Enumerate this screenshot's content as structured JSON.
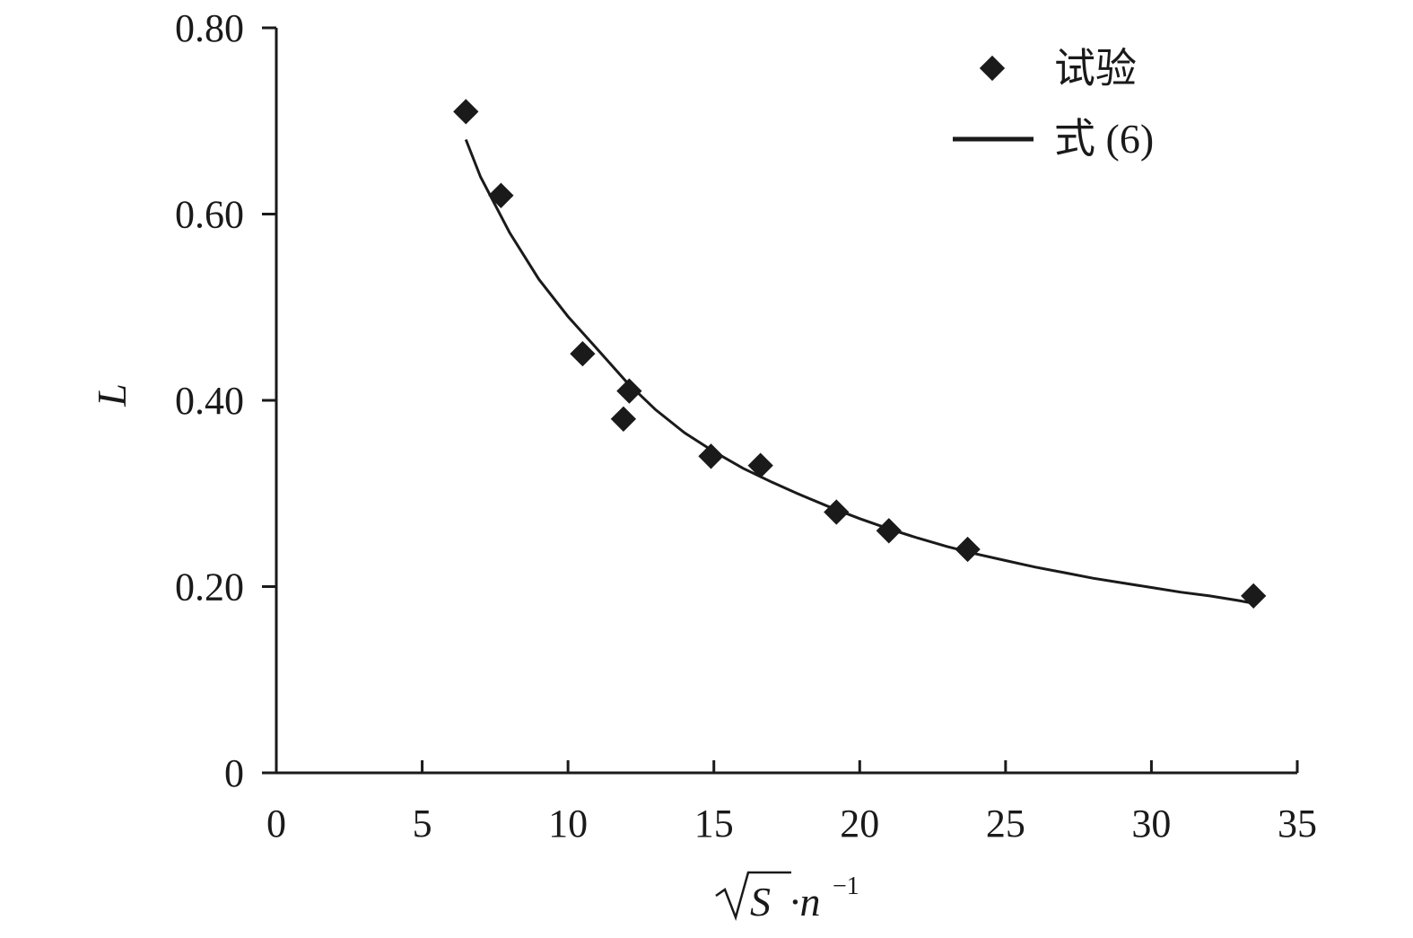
{
  "chart_data": {
    "type": "scatter",
    "xlabel": {
      "sqrt": "S",
      "rest": "·n",
      "sup": "−1"
    },
    "ylabel": "L",
    "xlim": [
      0,
      35
    ],
    "ylim": [
      0,
      0.8
    ],
    "x_ticks": [
      0,
      5,
      10,
      15,
      20,
      25,
      30,
      35
    ],
    "y_ticks": [
      0,
      0.2,
      0.4,
      0.6,
      0.8
    ],
    "x_tick_labels": [
      "0",
      "5",
      "10",
      "15",
      "20",
      "25",
      "30",
      "35"
    ],
    "y_tick_labels": [
      "0",
      "0.20",
      "0.40",
      "0.60",
      "0.80"
    ],
    "grid": false,
    "legend_position": "top-right",
    "series": [
      {
        "name": "试验",
        "kind": "scatter",
        "marker": "diamond",
        "color": "#1a1a1a",
        "x": [
          6.5,
          7.7,
          10.5,
          11.9,
          12.1,
          14.9,
          16.6,
          19.2,
          21.0,
          23.7,
          33.5
        ],
        "y": [
          0.71,
          0.62,
          0.45,
          0.38,
          0.41,
          0.34,
          0.33,
          0.28,
          0.26,
          0.24,
          0.19
        ]
      },
      {
        "name": "式 (6)",
        "kind": "line",
        "color": "#1a1a1a",
        "x": [
          6.5,
          7,
          8,
          9,
          10,
          11,
          12,
          13,
          14,
          15,
          16,
          17,
          18,
          19,
          20,
          21,
          22,
          23,
          24,
          25,
          26,
          27,
          28,
          29,
          30,
          31,
          32,
          33,
          33.5
        ],
        "y": [
          0.68,
          0.64,
          0.58,
          0.53,
          0.49,
          0.455,
          0.42,
          0.39,
          0.365,
          0.345,
          0.327,
          0.312,
          0.298,
          0.285,
          0.273,
          0.262,
          0.252,
          0.243,
          0.235,
          0.228,
          0.221,
          0.215,
          0.209,
          0.204,
          0.199,
          0.194,
          0.19,
          0.185,
          0.182
        ]
      }
    ]
  }
}
